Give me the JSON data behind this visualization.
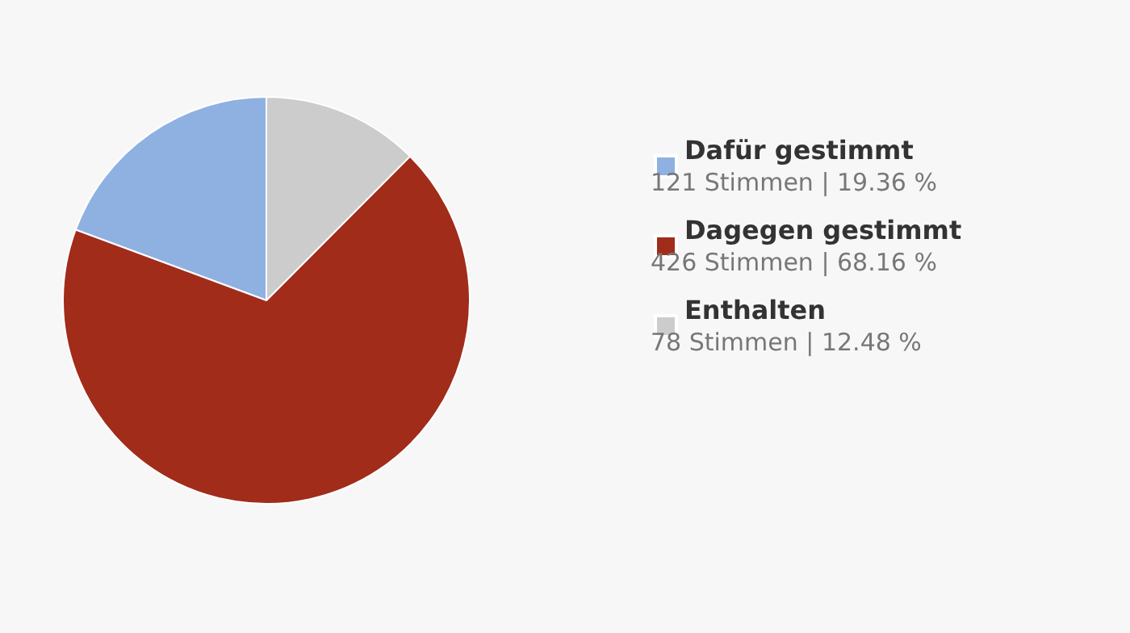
{
  "chart_data": {
    "type": "pie",
    "categories": [
      "Dafür gestimmt",
      "Dagegen gestimmt",
      "Enthalten"
    ],
    "values": [
      121,
      426,
      78
    ],
    "colors": [
      "#8fb1e1",
      "#a12c1a",
      "#cccccc"
    ],
    "value_labels": [
      "121 Stimmen | 19.36 %",
      "426 Stimmen | 68.16 %",
      "78 Stimmen | 12.48 %"
    ],
    "legend": "right"
  }
}
